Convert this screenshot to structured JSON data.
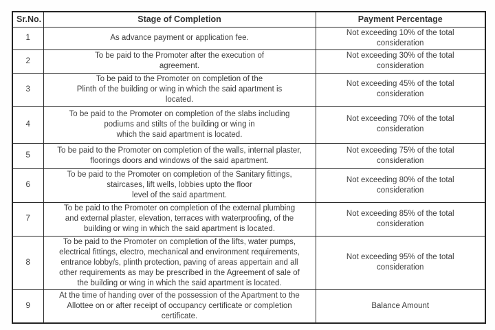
{
  "document": {
    "type": "payment-schedule-table",
    "colors": {
      "border": "#2a2a2a",
      "text": "#3d3d3d",
      "background": "#ffffff"
    },
    "table": {
      "columns": {
        "sr_no": "Sr.No.",
        "stage": "Stage of Completion",
        "payment": "Payment Percentage"
      },
      "rows": [
        {
          "sr": "1",
          "stage": "As advance payment or application fee.",
          "payment": "Not exceeding 10% of the total\nconsideration"
        },
        {
          "sr": "2",
          "stage": "To be paid to the Promoter after the execution of\nagreement.",
          "payment": "Not exceeding 30% of the total\nconsideration"
        },
        {
          "sr": "3",
          "stage": "To be paid to the Promoter on completion of the\nPlinth of the building or wing in which the said apartment is\nlocated.",
          "payment": "Not exceeding 45% of the total\nconsideration"
        },
        {
          "sr": "4",
          "stage": "To be paid to the Promoter on completion of the slabs including\npodiums and stilts of the building or wing in\nwhich the said apartment is located.",
          "payment": "Not exceeding 70% of the total\nconsideration"
        },
        {
          "sr": "5",
          "stage": "To be paid to the Promoter on completion of the walls, internal plaster,\nfloorings doors and windows of the said apartment.",
          "payment": "Not exceeding 75% of the total\nconsideration"
        },
        {
          "sr": "6",
          "stage": "To be paid to the Promoter on completion of the Sanitary fittings,\nstaircases, lift wells, lobbies upto the floor\nlevel of the said apartment.",
          "payment": "Not exceeding 80% of the total\nconsideration"
        },
        {
          "sr": "7",
          "stage": "To be paid to the Promoter on completion of the external plumbing\nand external plaster, elevation, terraces with waterproofing, of the\nbuilding or wing in which the said apartment is located.",
          "payment": "Not exceeding 85% of the total\nconsideration"
        },
        {
          "sr": "8",
          "stage": "To be paid to the Promoter on completion of the lifts, water pumps,\nelectrical fittings, electro, mechanical and environment requirements,\nentrance lobby/s, plinth protection, paving of areas appertain and all\nother requirements as may be prescribed in the Agreement of sale of\nthe building or wing in which the said apartment is located.",
          "payment": "Not exceeding 95% of the total\nconsideration"
        },
        {
          "sr": "9",
          "stage": "At the time of handing over of the possession of the Apartment to the\nAllottee on or after receipt of occupancy certificate or completion\ncertificate.",
          "payment": "Balance Amount"
        }
      ]
    }
  }
}
